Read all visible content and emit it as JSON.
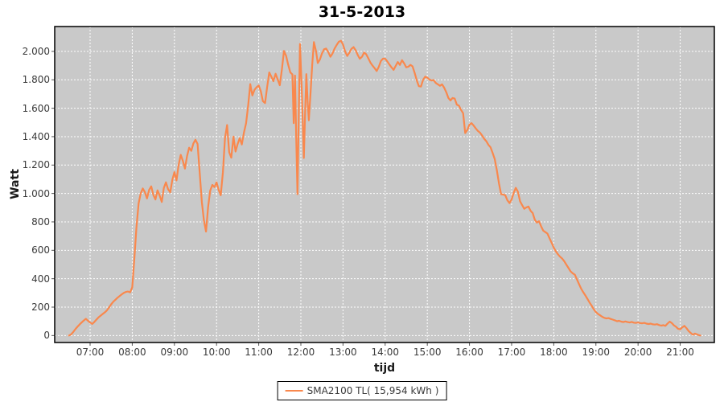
{
  "colors": {
    "plot_bg": "#C9C9C9",
    "grid": "#FFFFFF",
    "plot_border": "#000000",
    "tick_mark": "#555555",
    "tick_text": "#3A3A3A",
    "title_text": "#000000",
    "line": "#F9884D"
  },
  "chart_data": {
    "type": "line",
    "title": "31-5-2013",
    "xlabel": "tijd",
    "ylabel": "Watt",
    "grid": true,
    "legend_position": "bottom-center",
    "xlim": [
      6.16,
      21.81
    ],
    "ylim": [
      -49,
      2175
    ],
    "x_ticks": {
      "values": [
        7,
        8,
        9,
        10,
        11,
        12,
        13,
        14,
        15,
        16,
        17,
        18,
        19,
        20,
        21
      ],
      "labels": [
        "07:00",
        "08:00",
        "09:00",
        "10:00",
        "11:00",
        "12:00",
        "13:00",
        "14:00",
        "15:00",
        "16:00",
        "17:00",
        "18:00",
        "19:00",
        "20:00",
        "21:00"
      ]
    },
    "y_ticks": {
      "values": [
        0,
        200,
        400,
        600,
        800,
        1000,
        1200,
        1400,
        1600,
        1800,
        2000
      ],
      "labels": [
        "0",
        "200",
        "400",
        "600",
        "800",
        "1.000",
        "1.200",
        "1.400",
        "1.600",
        "1.800",
        "2.000"
      ]
    },
    "series": [
      {
        "name": "SMA2100 TL( 15,954 kWh )",
        "color": "#F9884D",
        "unit_y": "Watt",
        "unit_x": "hour_of_day",
        "points": [
          [
            6.5,
            0
          ],
          [
            6.55,
            8
          ],
          [
            6.6,
            25
          ],
          [
            6.65,
            45
          ],
          [
            6.7,
            62
          ],
          [
            6.75,
            78
          ],
          [
            6.8,
            92
          ],
          [
            6.85,
            106
          ],
          [
            6.9,
            118
          ],
          [
            6.95,
            104
          ],
          [
            7.0,
            92
          ],
          [
            7.05,
            82
          ],
          [
            7.1,
            96
          ],
          [
            7.15,
            112
          ],
          [
            7.2,
            128
          ],
          [
            7.25,
            140
          ],
          [
            7.3,
            152
          ],
          [
            7.35,
            164
          ],
          [
            7.4,
            178
          ],
          [
            7.45,
            198
          ],
          [
            7.5,
            220
          ],
          [
            7.55,
            238
          ],
          [
            7.6,
            252
          ],
          [
            7.65,
            266
          ],
          [
            7.7,
            278
          ],
          [
            7.75,
            290
          ],
          [
            7.8,
            300
          ],
          [
            7.85,
            307
          ],
          [
            7.9,
            310
          ],
          [
            7.95,
            304
          ],
          [
            8.0,
            340
          ],
          [
            8.05,
            540
          ],
          [
            8.1,
            760
          ],
          [
            8.15,
            930
          ],
          [
            8.2,
            1000
          ],
          [
            8.25,
            1035
          ],
          [
            8.3,
            1010
          ],
          [
            8.35,
            965
          ],
          [
            8.4,
            1025
          ],
          [
            8.45,
            1050
          ],
          [
            8.5,
            990
          ],
          [
            8.55,
            958
          ],
          [
            8.6,
            1022
          ],
          [
            8.65,
            985
          ],
          [
            8.7,
            940
          ],
          [
            8.75,
            1040
          ],
          [
            8.8,
            1078
          ],
          [
            8.85,
            1030
          ],
          [
            8.9,
            1008
          ],
          [
            8.95,
            1095
          ],
          [
            9.0,
            1150
          ],
          [
            9.05,
            1092
          ],
          [
            9.1,
            1200
          ],
          [
            9.15,
            1272
          ],
          [
            9.2,
            1230
          ],
          [
            9.25,
            1175
          ],
          [
            9.3,
            1262
          ],
          [
            9.35,
            1322
          ],
          [
            9.4,
            1300
          ],
          [
            9.45,
            1352
          ],
          [
            9.5,
            1378
          ],
          [
            9.55,
            1348
          ],
          [
            9.6,
            1150
          ],
          [
            9.65,
            940
          ],
          [
            9.7,
            810
          ],
          [
            9.75,
            732
          ],
          [
            9.8,
            905
          ],
          [
            9.85,
            1020
          ],
          [
            9.9,
            1060
          ],
          [
            9.95,
            1045
          ],
          [
            10.0,
            1078
          ],
          [
            10.05,
            1025
          ],
          [
            10.1,
            988
          ],
          [
            10.15,
            1150
          ],
          [
            10.2,
            1390
          ],
          [
            10.25,
            1482
          ],
          [
            10.3,
            1290
          ],
          [
            10.35,
            1252
          ],
          [
            10.4,
            1400
          ],
          [
            10.45,
            1295
          ],
          [
            10.5,
            1348
          ],
          [
            10.55,
            1390
          ],
          [
            10.6,
            1345
          ],
          [
            10.65,
            1430
          ],
          [
            10.7,
            1495
          ],
          [
            10.75,
            1620
          ],
          [
            10.8,
            1770
          ],
          [
            10.85,
            1690
          ],
          [
            10.9,
            1730
          ],
          [
            10.95,
            1748
          ],
          [
            11.0,
            1760
          ],
          [
            11.05,
            1720
          ],
          [
            11.1,
            1650
          ],
          [
            11.15,
            1636
          ],
          [
            11.2,
            1750
          ],
          [
            11.25,
            1852
          ],
          [
            11.3,
            1822
          ],
          [
            11.35,
            1790
          ],
          [
            11.4,
            1843
          ],
          [
            11.45,
            1802
          ],
          [
            11.5,
            1762
          ],
          [
            11.55,
            1872
          ],
          [
            11.6,
            2003
          ],
          [
            11.65,
            1968
          ],
          [
            11.7,
            1905
          ],
          [
            11.75,
            1852
          ],
          [
            11.8,
            1838
          ],
          [
            11.83,
            1495
          ],
          [
            11.86,
            1830
          ],
          [
            11.89,
            1400
          ],
          [
            11.92,
            995
          ],
          [
            11.95,
            1550
          ],
          [
            11.98,
            2052
          ],
          [
            12.02,
            1750
          ],
          [
            12.07,
            1250
          ],
          [
            12.1,
            1550
          ],
          [
            12.13,
            1840
          ],
          [
            12.16,
            1650
          ],
          [
            12.19,
            1515
          ],
          [
            12.23,
            1705
          ],
          [
            12.27,
            1905
          ],
          [
            12.31,
            2065
          ],
          [
            12.36,
            2000
          ],
          [
            12.4,
            1918
          ],
          [
            12.45,
            1942
          ],
          [
            12.5,
            1985
          ],
          [
            12.55,
            2015
          ],
          [
            12.6,
            2020
          ],
          [
            12.65,
            1995
          ],
          [
            12.7,
            1962
          ],
          [
            12.75,
            1985
          ],
          [
            12.8,
            2020
          ],
          [
            12.85,
            2045
          ],
          [
            12.9,
            2068
          ],
          [
            12.95,
            2075
          ],
          [
            13.0,
            2048
          ],
          [
            13.05,
            2000
          ],
          [
            13.1,
            1968
          ],
          [
            13.15,
            1990
          ],
          [
            13.2,
            2018
          ],
          [
            13.25,
            2030
          ],
          [
            13.3,
            2008
          ],
          [
            13.35,
            1975
          ],
          [
            13.4,
            1948
          ],
          [
            13.45,
            1962
          ],
          [
            13.5,
            1992
          ],
          [
            13.55,
            1980
          ],
          [
            13.6,
            1952
          ],
          [
            13.65,
            1922
          ],
          [
            13.7,
            1900
          ],
          [
            13.75,
            1882
          ],
          [
            13.8,
            1862
          ],
          [
            13.85,
            1892
          ],
          [
            13.9,
            1932
          ],
          [
            13.95,
            1950
          ],
          [
            14.0,
            1948
          ],
          [
            14.05,
            1930
          ],
          [
            14.1,
            1908
          ],
          [
            14.15,
            1888
          ],
          [
            14.2,
            1870
          ],
          [
            14.25,
            1898
          ],
          [
            14.3,
            1925
          ],
          [
            14.35,
            1905
          ],
          [
            14.4,
            1938
          ],
          [
            14.45,
            1915
          ],
          [
            14.5,
            1888
          ],
          [
            14.55,
            1892
          ],
          [
            14.6,
            1905
          ],
          [
            14.65,
            1895
          ],
          [
            14.7,
            1848
          ],
          [
            14.75,
            1795
          ],
          [
            14.8,
            1755
          ],
          [
            14.85,
            1752
          ],
          [
            14.9,
            1800
          ],
          [
            14.95,
            1822
          ],
          [
            15.0,
            1815
          ],
          [
            15.05,
            1802
          ],
          [
            15.1,
            1795
          ],
          [
            15.15,
            1798
          ],
          [
            15.2,
            1778
          ],
          [
            15.25,
            1768
          ],
          [
            15.3,
            1758
          ],
          [
            15.35,
            1768
          ],
          [
            15.4,
            1745
          ],
          [
            15.45,
            1712
          ],
          [
            15.5,
            1672
          ],
          [
            15.55,
            1655
          ],
          [
            15.6,
            1672
          ],
          [
            15.65,
            1668
          ],
          [
            15.7,
            1625
          ],
          [
            15.75,
            1618
          ],
          [
            15.8,
            1588
          ],
          [
            15.85,
            1565
          ],
          [
            15.9,
            1425
          ],
          [
            15.95,
            1448
          ],
          [
            16.0,
            1485
          ],
          [
            16.05,
            1495
          ],
          [
            16.1,
            1478
          ],
          [
            16.15,
            1458
          ],
          [
            16.2,
            1440
          ],
          [
            16.25,
            1428
          ],
          [
            16.3,
            1408
          ],
          [
            16.35,
            1385
          ],
          [
            16.4,
            1368
          ],
          [
            16.45,
            1342
          ],
          [
            16.5,
            1325
          ],
          [
            16.55,
            1285
          ],
          [
            16.6,
            1242
          ],
          [
            16.65,
            1165
          ],
          [
            16.7,
            1070
          ],
          [
            16.75,
            995
          ],
          [
            16.8,
            992
          ],
          [
            16.85,
            988
          ],
          [
            16.9,
            952
          ],
          [
            16.95,
            932
          ],
          [
            17.0,
            958
          ],
          [
            17.05,
            1005
          ],
          [
            17.1,
            1040
          ],
          [
            17.15,
            1012
          ],
          [
            17.2,
            945
          ],
          [
            17.25,
            918
          ],
          [
            17.3,
            892
          ],
          [
            17.35,
            902
          ],
          [
            17.4,
            908
          ],
          [
            17.45,
            878
          ],
          [
            17.5,
            862
          ],
          [
            17.55,
            815
          ],
          [
            17.6,
            795
          ],
          [
            17.65,
            805
          ],
          [
            17.7,
            768
          ],
          [
            17.75,
            738
          ],
          [
            17.8,
            728
          ],
          [
            17.85,
            718
          ],
          [
            17.9,
            685
          ],
          [
            17.95,
            652
          ],
          [
            18.0,
            618
          ],
          [
            18.05,
            592
          ],
          [
            18.1,
            572
          ],
          [
            18.15,
            555
          ],
          [
            18.2,
            542
          ],
          [
            18.25,
            522
          ],
          [
            18.3,
            498
          ],
          [
            18.35,
            475
          ],
          [
            18.4,
            452
          ],
          [
            18.45,
            438
          ],
          [
            18.5,
            428
          ],
          [
            18.55,
            395
          ],
          [
            18.6,
            362
          ],
          [
            18.65,
            330
          ],
          [
            18.7,
            305
          ],
          [
            18.75,
            282
          ],
          [
            18.8,
            258
          ],
          [
            18.85,
            232
          ],
          [
            18.9,
            210
          ],
          [
            18.95,
            185
          ],
          [
            19.0,
            165
          ],
          [
            19.05,
            152
          ],
          [
            19.1,
            142
          ],
          [
            19.15,
            132
          ],
          [
            19.2,
            125
          ],
          [
            19.25,
            120
          ],
          [
            19.3,
            123
          ],
          [
            19.35,
            117
          ],
          [
            19.4,
            112
          ],
          [
            19.45,
            107
          ],
          [
            19.5,
            101
          ],
          [
            19.55,
            104
          ],
          [
            19.6,
            98
          ],
          [
            19.65,
            95
          ],
          [
            19.7,
            99
          ],
          [
            19.75,
            95
          ],
          [
            19.8,
            92
          ],
          [
            19.85,
            96
          ],
          [
            19.9,
            91
          ],
          [
            19.95,
            89
          ],
          [
            20.0,
            92
          ],
          [
            20.05,
            88
          ],
          [
            20.1,
            86
          ],
          [
            20.15,
            89
          ],
          [
            20.2,
            84
          ],
          [
            20.25,
            81
          ],
          [
            20.3,
            84
          ],
          [
            20.35,
            79
          ],
          [
            20.4,
            77
          ],
          [
            20.45,
            80
          ],
          [
            20.5,
            74
          ],
          [
            20.55,
            70
          ],
          [
            20.6,
            73
          ],
          [
            20.65,
            68
          ],
          [
            20.7,
            84
          ],
          [
            20.75,
            98
          ],
          [
            20.8,
            88
          ],
          [
            20.85,
            72
          ],
          [
            20.9,
            62
          ],
          [
            20.95,
            48
          ],
          [
            21.0,
            44
          ],
          [
            21.05,
            58
          ],
          [
            21.1,
            68
          ],
          [
            21.15,
            52
          ],
          [
            21.2,
            32
          ],
          [
            21.25,
            18
          ],
          [
            21.3,
            6
          ],
          [
            21.35,
            14
          ],
          [
            21.4,
            8
          ],
          [
            21.45,
            2
          ],
          [
            21.48,
            0
          ]
        ]
      }
    ]
  }
}
